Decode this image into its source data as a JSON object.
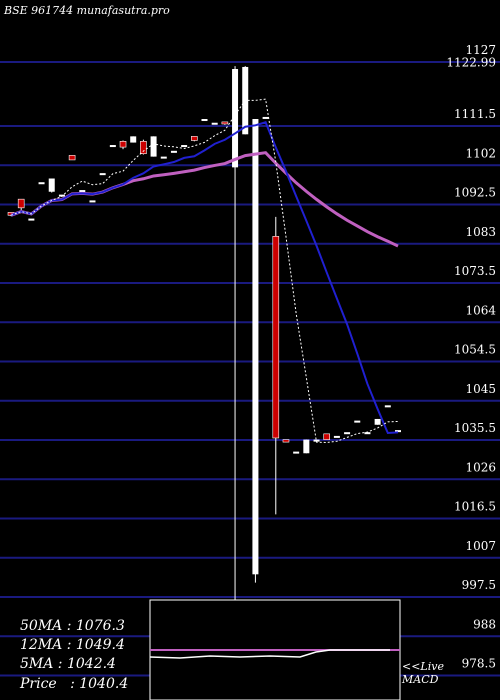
{
  "header": {
    "title": "BSE 961744  munafasutra.pro"
  },
  "colors": {
    "background": "#000000",
    "grid": "#1a1a80",
    "up": "#ffffff",
    "down": "#cc0000",
    "ma_long": "#c060c0",
    "ma_mid": "#2020d0",
    "ma_short": "#ffffff",
    "macd_line": "#c060c0"
  },
  "chart_data": {
    "type": "candlestick",
    "title": "BSE 961744  munafasutra.pro",
    "ylim": [
      975,
      1127
    ],
    "ytick_labels": [
      "1127",
      "1122.99",
      "1111.5",
      "1102",
      "1092.5",
      "1083",
      "1073.5",
      "1064",
      "1054.5",
      "1045",
      "1035.5",
      "1026",
      "1016.5",
      "1007",
      "997.5",
      "988",
      "978.5"
    ],
    "grid": true,
    "candles": [
      {
        "o": 1090.6,
        "c": 1089.9,
        "h": 1090.6,
        "l": 1089.7
      },
      {
        "o": 1093.8,
        "c": 1091.7,
        "h": 1093.8,
        "l": 1091.0
      },
      {
        "o": 1089.1,
        "c": 1089.1,
        "h": 1089.1,
        "l": 1089.1
      },
      {
        "o": 1097.9,
        "c": 1097.9,
        "h": 1097.9,
        "l": 1097.9
      },
      {
        "o": 1095.6,
        "c": 1098.8,
        "h": 1098.8,
        "l": 1095.4
      },
      {
        "o": 1094.9,
        "c": 1094.9,
        "h": 1094.9,
        "l": 1094.9
      },
      {
        "o": 1104.4,
        "c": 1103.3,
        "h": 1104.4,
        "l": 1103.3
      },
      {
        "o": 1096.0,
        "c": 1096.0,
        "h": 1096.0,
        "l": 1096.0
      },
      {
        "o": 1093.5,
        "c": 1093.5,
        "h": 1093.5,
        "l": 1093.5
      },
      {
        "o": 1100.1,
        "c": 1100.1,
        "h": 1100.1,
        "l": 1100.1
      },
      {
        "o": 1106.9,
        "c": 1106.9,
        "h": 1106.9,
        "l": 1106.9
      },
      {
        "o": 1107.8,
        "c": 1106.4,
        "h": 1108.0,
        "l": 1105.9
      },
      {
        "o": 1107.5,
        "c": 1109.0,
        "h": 1109.0,
        "l": 1107.5
      },
      {
        "o": 1107.8,
        "c": 1104.8,
        "h": 1108.2,
        "l": 1104.6
      },
      {
        "o": 1104.1,
        "c": 1109.0,
        "h": 1109.0,
        "l": 1104.1
      },
      {
        "o": 1104.1,
        "c": 1104.1,
        "h": 1104.1,
        "l": 1104.1
      },
      {
        "o": 1105.5,
        "c": 1105.5,
        "h": 1105.5,
        "l": 1105.5
      },
      {
        "o": 1106.9,
        "c": 1106.9,
        "h": 1106.9,
        "l": 1106.9
      },
      {
        "o": 1109.0,
        "c": 1108.0,
        "h": 1109.0,
        "l": 1107.8
      },
      {
        "o": 1113.2,
        "c": 1113.2,
        "h": 1113.2,
        "l": 1113.2
      },
      {
        "o": 1112.3,
        "c": 1112.3,
        "h": 1112.3,
        "l": 1112.3
      },
      {
        "o": 1112.5,
        "c": 1112.0,
        "h": 1112.5,
        "l": 1111.8
      },
      {
        "o": 1101.5,
        "c": 1125.3,
        "h": 1126.0,
        "l": 940.0
      },
      {
        "o": 1109.5,
        "c": 1125.8,
        "h": 1126.0,
        "l": 1109.5
      },
      {
        "o": 1003.0,
        "c": 1113.2,
        "h": 1113.2,
        "l": 1001.0
      },
      {
        "o": 1113.7,
        "c": 1113.7,
        "h": 1113.7,
        "l": 1113.7
      },
      {
        "o": 1084.8,
        "c": 1036.0,
        "h": 1089.5,
        "l": 1017.5
      },
      {
        "o": 1035.6,
        "c": 1035.0,
        "h": 1035.6,
        "l": 1035.0
      },
      {
        "o": 1032.7,
        "c": 1032.7,
        "h": 1032.7,
        "l": 1032.7
      },
      {
        "o": 1032.3,
        "c": 1035.6,
        "h": 1035.6,
        "l": 1032.3
      },
      {
        "o": 1035.6,
        "c": 1035.6,
        "h": 1035.6,
        "l": 1035.6
      },
      {
        "o": 1037.0,
        "c": 1035.6,
        "h": 1037.0,
        "l": 1035.6
      },
      {
        "o": 1036.5,
        "c": 1036.5,
        "h": 1036.5,
        "l": 1036.5
      },
      {
        "o": 1037.4,
        "c": 1037.4,
        "h": 1037.4,
        "l": 1037.4
      },
      {
        "o": 1040.2,
        "c": 1040.2,
        "h": 1040.2,
        "l": 1040.2
      },
      {
        "o": 1037.4,
        "c": 1037.4,
        "h": 1037.4,
        "l": 1037.4
      },
      {
        "o": 1039.2,
        "c": 1040.6,
        "h": 1040.6,
        "l": 1039.2
      },
      {
        "o": 1043.9,
        "c": 1043.9,
        "h": 1043.9,
        "l": 1043.9
      },
      {
        "o": 1037.9,
        "c": 1037.9,
        "h": 1037.9,
        "l": 1037.9
      }
    ],
    "moving_averages": [
      {
        "label": "50MA",
        "value": 1076.3
      },
      {
        "label": "12MA",
        "value": 1049.4
      },
      {
        "label": "5MA",
        "value": 1042.4
      }
    ],
    "price": {
      "label": "Price",
      "value": 1040.4
    },
    "macd_label": "<<Live MACD"
  },
  "legend_text": {
    "ma50": "50MA : 1076.3",
    "ma12": "12MA : 1049.4",
    "ma5": "5MA : 1042.4",
    "price": "Price   : 1040.4"
  },
  "macd": {
    "live": "<<Live",
    "name": "MACD"
  }
}
